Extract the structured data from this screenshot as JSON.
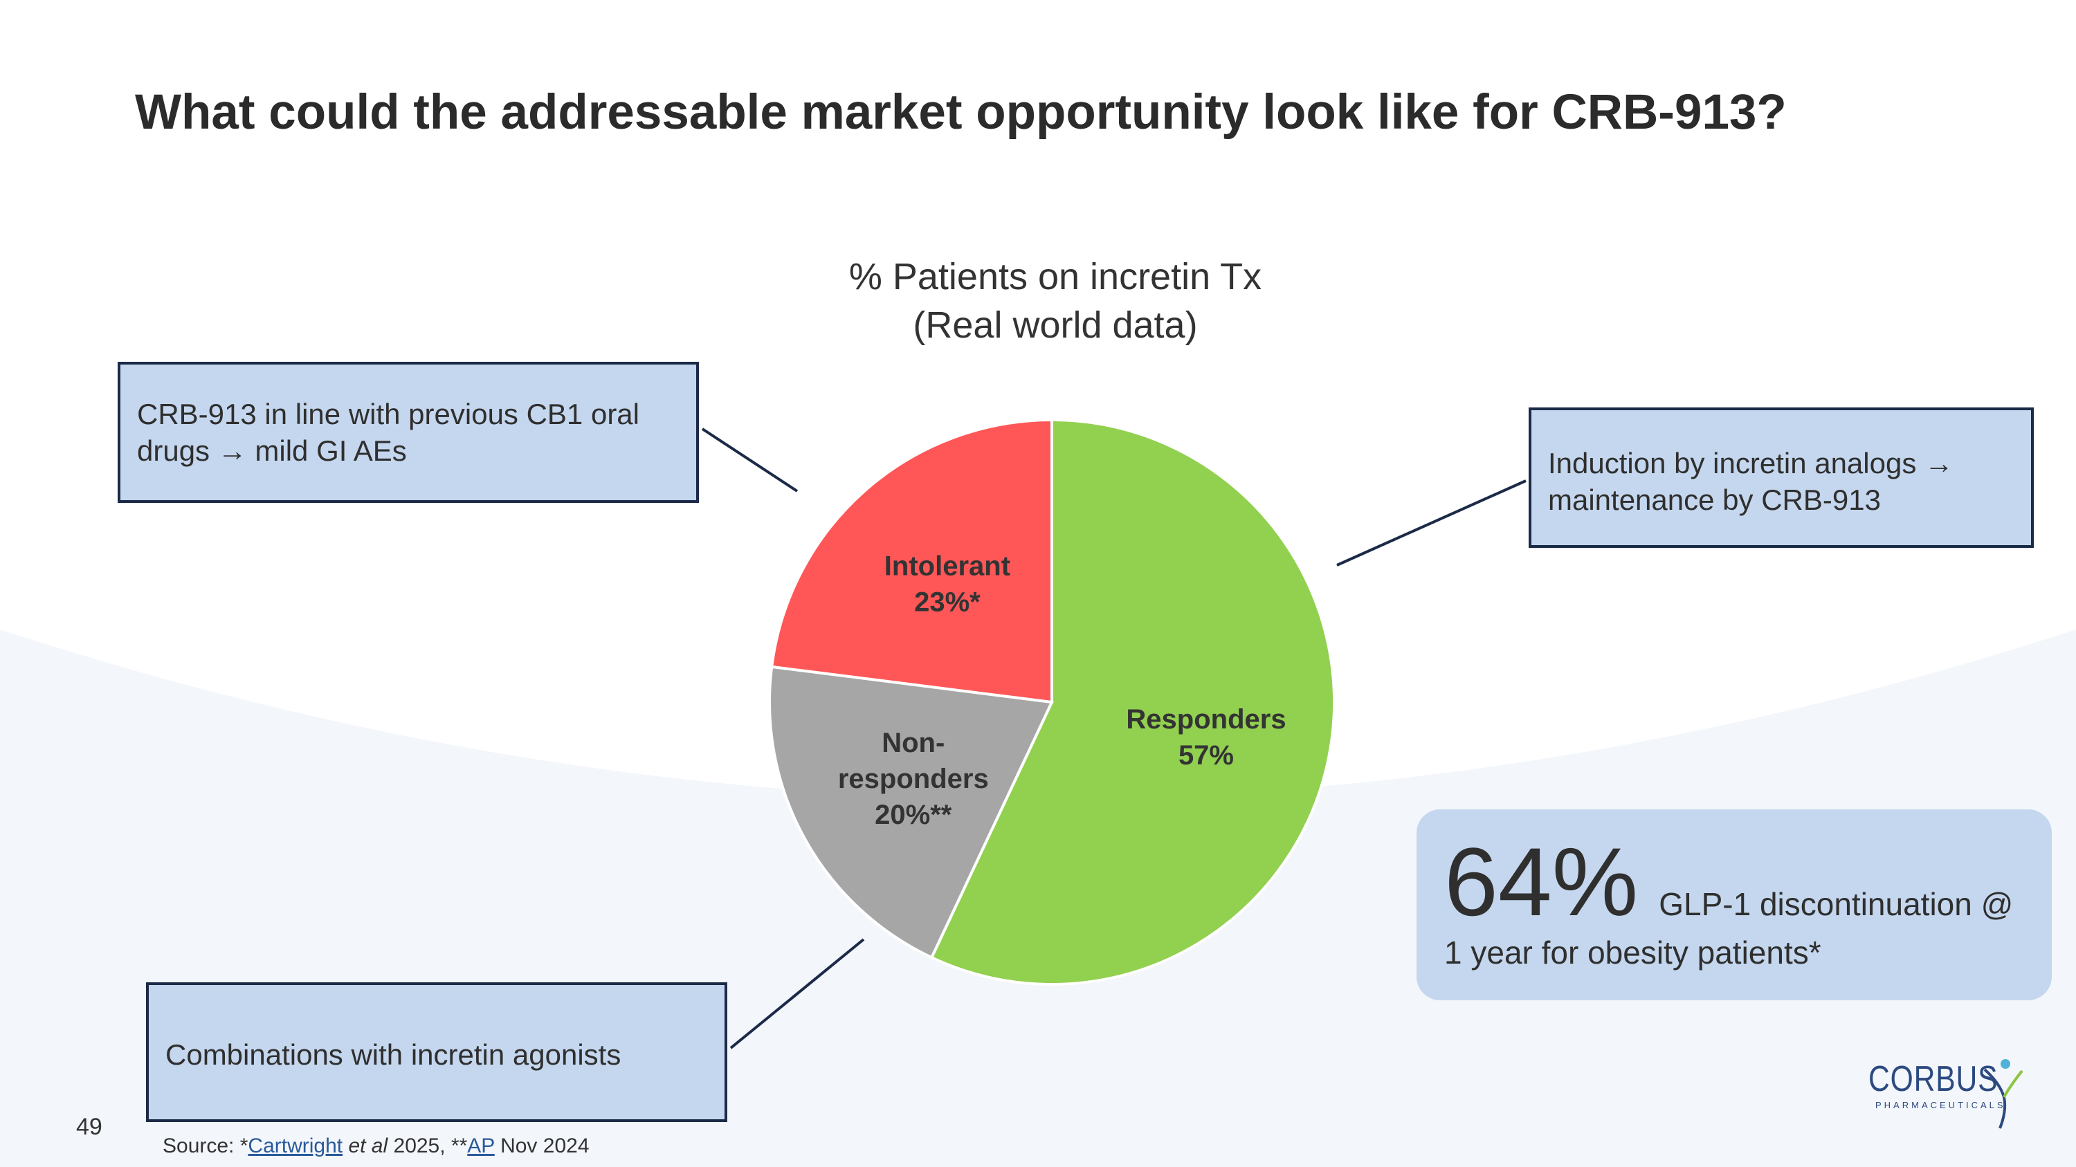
{
  "slide": {
    "title": "What could the addressable market opportunity look like for CRB-913?",
    "page_number": "49"
  },
  "chart_data": {
    "type": "pie",
    "title": "% Patients on incretin Tx (Real world data)",
    "title_lines": [
      "% Patients on incretin Tx",
      "(Real world data)"
    ],
    "slices": [
      {
        "name": "Responders",
        "value": 57,
        "label_lines": [
          "Responders",
          "57%"
        ],
        "color": "#92d050"
      },
      {
        "name": "Non-responders",
        "value": 20,
        "label_lines": [
          "Non-",
          "responders",
          "20%**"
        ],
        "color": "#a6a6a6"
      },
      {
        "name": "Intolerant",
        "value": 23,
        "label_lines": [
          "Intolerant",
          "23%*"
        ],
        "color": "#ff5757"
      }
    ]
  },
  "callouts": {
    "intolerant": "CRB-913 in line with previous CB1 oral drugs  → mild GI AEs",
    "responders": "Induction by incretin analogs → maintenance by CRB-913",
    "nonresponders": "Combinations with incretin agonists"
  },
  "stat": {
    "value": "64%",
    "text_line1": "GLP-1 discontinuation @",
    "text_line2": "1 year for obesity patients*"
  },
  "source": {
    "prefix": "Source: *",
    "link1": "Cartwright",
    "italic": "et al",
    "middle": " 2025,  **",
    "link2": "AP",
    "suffix": " Nov 2024"
  },
  "logo": {
    "name": "CORBUS",
    "sub": "PHARMACEUTICALS"
  },
  "colors": {
    "callout_fill": "#c5d7ee",
    "callout_border": "#1b2a47",
    "background_curve": "#f2f5fa"
  }
}
